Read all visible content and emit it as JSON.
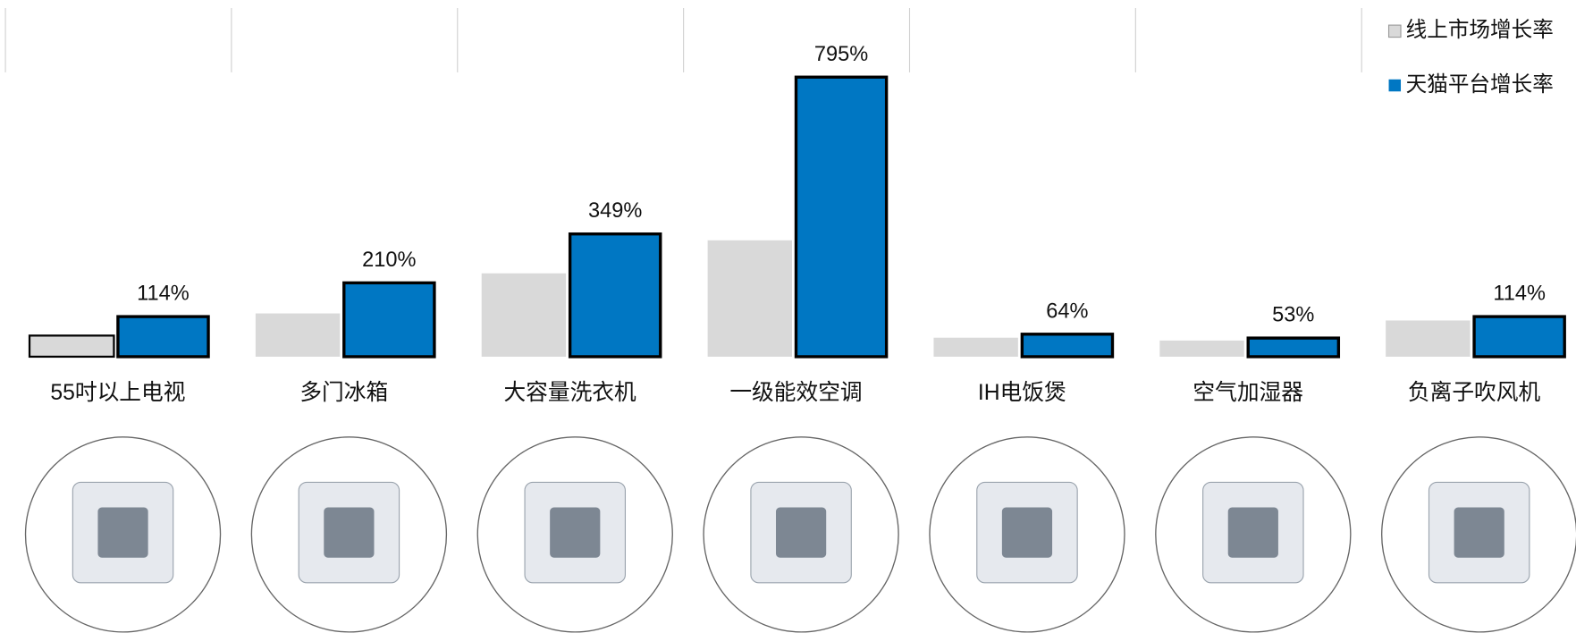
{
  "chart_data": {
    "type": "bar",
    "categories": [
      "55吋以上电视",
      "多门冰箱",
      "大容量洗衣机",
      "一级能效空调",
      "IH电饭煲",
      "空气加湿器",
      "负离子吹风机"
    ],
    "series": [
      {
        "name": "线上市场增长率",
        "color": "#d9d9d9",
        "values": [
          60,
          123,
          237,
          331,
          54,
          46,
          103
        ]
      },
      {
        "name": "天猫平台增长率",
        "color": "#0077c3",
        "values": [
          114,
          210,
          349,
          795,
          64,
          53,
          114
        ],
        "value_labels": [
          "114%",
          "210%",
          "349%",
          "795%",
          "64%",
          "53%",
          "114%"
        ]
      }
    ],
    "ylim": [
      0,
      1000
    ],
    "legend": "top-right",
    "grid": false
  }
}
